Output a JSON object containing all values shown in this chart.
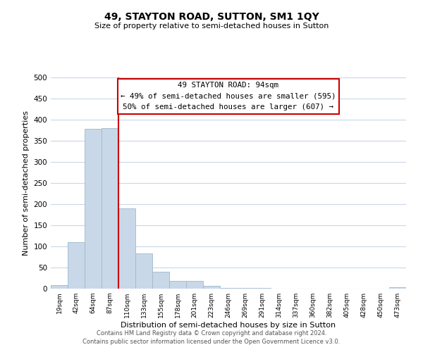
{
  "title": "49, STAYTON ROAD, SUTTON, SM1 1QY",
  "subtitle": "Size of property relative to semi-detached houses in Sutton",
  "xlabel": "Distribution of semi-detached houses by size in Sutton",
  "ylabel": "Number of semi-detached properties",
  "bar_labels": [
    "19sqm",
    "42sqm",
    "64sqm",
    "87sqm",
    "110sqm",
    "133sqm",
    "155sqm",
    "178sqm",
    "201sqm",
    "223sqm",
    "246sqm",
    "269sqm",
    "291sqm",
    "314sqm",
    "337sqm",
    "360sqm",
    "382sqm",
    "405sqm",
    "428sqm",
    "450sqm",
    "473sqm"
  ],
  "bar_values": [
    8,
    110,
    378,
    380,
    190,
    83,
    40,
    18,
    18,
    6,
    2,
    2,
    2,
    0,
    0,
    0,
    0,
    0,
    0,
    0,
    3
  ],
  "bar_color": "#c8d8e8",
  "bar_edge_color": "#a0b8cc",
  "property_line_x": 3.5,
  "property_line_color": "#cc0000",
  "annotation_title": "49 STAYTON ROAD: 94sqm",
  "annotation_line1": "← 49% of semi-detached houses are smaller (595)",
  "annotation_line2": "50% of semi-detached houses are larger (607) →",
  "annotation_box_color": "#ffffff",
  "annotation_box_edge": "#cc0000",
  "ylim": [
    0,
    500
  ],
  "yticks": [
    0,
    50,
    100,
    150,
    200,
    250,
    300,
    350,
    400,
    450,
    500
  ],
  "footer1": "Contains HM Land Registry data © Crown copyright and database right 2024.",
  "footer2": "Contains public sector information licensed under the Open Government Licence v3.0.",
  "background_color": "#ffffff",
  "grid_color": "#c8d8e8"
}
